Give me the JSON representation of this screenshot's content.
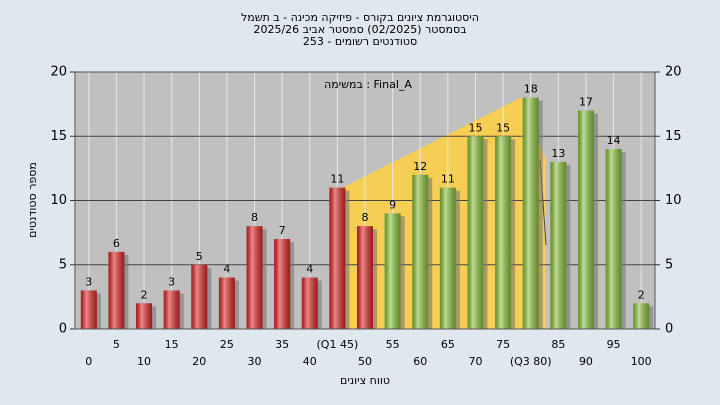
{
  "chart_data": {
    "type": "bar",
    "title": "היסטוגרמת ציונים בקורס - פיזיקה מכינה - ב תשמל",
    "subtitle": "בסמסטר  (02/2025)  סמסטר אביב  2025/26",
    "subtitle2": "סטודנטים רשומים - 253",
    "annotation": "במשימה : Final_A",
    "x_label": "טווח ציונים",
    "y_label": "מספר סטודנטים",
    "categories": [
      "0",
      "5",
      "10",
      "15",
      "20",
      "25",
      "30",
      "35",
      "40",
      "(Q1 45)",
      "50",
      "55",
      "60",
      "65",
      "70",
      "75",
      "(Q3 80)",
      "85",
      "90",
      "95",
      "100"
    ],
    "values": [
      3,
      6,
      2,
      3,
      5,
      4,
      8,
      7,
      4,
      11,
      8,
      9,
      12,
      11,
      15,
      15,
      18,
      13,
      17,
      14,
      2
    ],
    "bar_colors": [
      "#e02828",
      "#e02828",
      "#e02828",
      "#e02828",
      "#e02828",
      "#e02828",
      "#e02828",
      "#e02828",
      "#e02828",
      "#e02828",
      "#e02828",
      "#8cc43c",
      "#8cc43c",
      "#8cc43c",
      "#8cc43c",
      "#8cc43c",
      "#8cc43c",
      "#8cc43c",
      "#8cc43c",
      "#8cc43c",
      "#8cc43c"
    ],
    "ylim": [
      0,
      20
    ],
    "yticks": [
      0,
      5,
      10,
      15,
      20
    ],
    "y2lim": [
      0,
      20
    ],
    "y2ticks": [
      0,
      5,
      10,
      15,
      20
    ],
    "grid": true
  }
}
